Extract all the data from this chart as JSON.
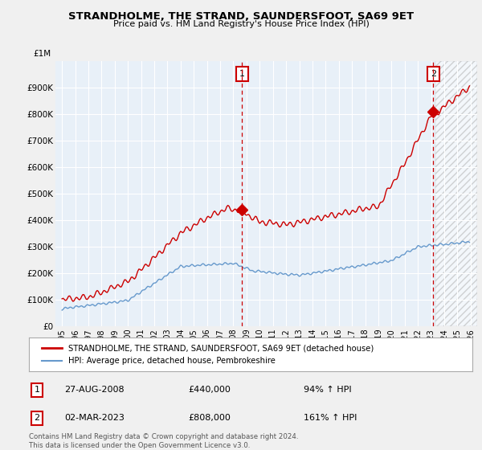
{
  "title": "STRANDHOLME, THE STRAND, SAUNDERSFOOT, SA69 9ET",
  "subtitle": "Price paid vs. HM Land Registry's House Price Index (HPI)",
  "red_label": "STRANDHOLME, THE STRAND, SAUNDERSFOOT, SA69 9ET (detached house)",
  "blue_label": "HPI: Average price, detached house, Pembrokeshire",
  "annotation1": {
    "num": "1",
    "date": "27-AUG-2008",
    "price": "£440,000",
    "hpi": "94% ↑ HPI"
  },
  "annotation2": {
    "num": "2",
    "date": "02-MAR-2023",
    "price": "£808,000",
    "hpi": "161% ↑ HPI"
  },
  "vline1_x": 2008.65,
  "vline2_x": 2023.17,
  "red_color": "#cc0000",
  "blue_color": "#6699cc",
  "bg_fill_color": "#dce8f5",
  "plot_bg_color": "#ffffff",
  "footer": "Contains HM Land Registry data © Crown copyright and database right 2024.\nThis data is licensed under the Open Government Licence v3.0.",
  "ylim": [
    0,
    1000000
  ],
  "xlim": [
    1994.5,
    2026.5
  ]
}
